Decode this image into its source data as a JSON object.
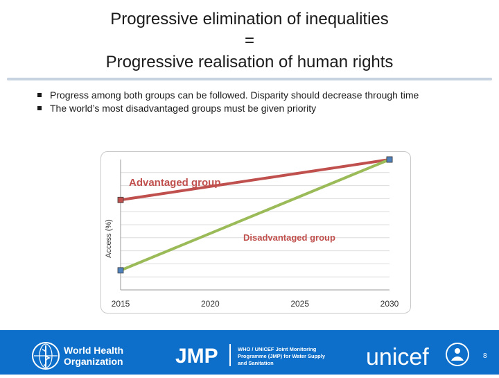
{
  "slide": {
    "title_line1": "Progressive elimination of inequalities",
    "title_line2": "=",
    "title_line3": "Progressive realisation of human rights",
    "page_number": "8"
  },
  "bullets": [
    "Progress among both groups can be followed. Disparity should decrease through time",
    "The world’s most disadvantaged groups must be given priority"
  ],
  "footer": {
    "who_line1": "World Health",
    "who_line2": "Organization",
    "jmp": "JMP",
    "jmp_desc_line1": "WHO / UNICEF Joint Monitoring",
    "jmp_desc_line2": "Programme (JMP) for Water Supply",
    "jmp_desc_line3": "and Sanitation",
    "unicef": "unicef"
  },
  "colors": {
    "advantaged": "#c0504d",
    "disadvantaged": "#9bbb59",
    "marker_adv": "#c0504d",
    "marker_dis": "#4f81bd",
    "footer_bg": "#0d6fc9"
  },
  "chart_data": {
    "type": "line",
    "title": "",
    "xlabel": "",
    "ylabel": "Access (%)",
    "x": [
      2015,
      2030
    ],
    "xticks": [
      "2015",
      "2020",
      "2025",
      "2030"
    ],
    "xlim": [
      2015,
      2030
    ],
    "ylim": [
      0,
      100
    ],
    "grid": true,
    "series": [
      {
        "name": "Advantaged group",
        "x": [
          2015,
          2030
        ],
        "values": [
          69,
          100
        ]
      },
      {
        "name": "Disadvantaged group",
        "x": [
          2015,
          2030
        ],
        "values": [
          15,
          100
        ]
      }
    ],
    "annotations": {
      "advantaged_label": "Advantaged group",
      "disadvantaged_label": "Disadvantaged group"
    }
  }
}
